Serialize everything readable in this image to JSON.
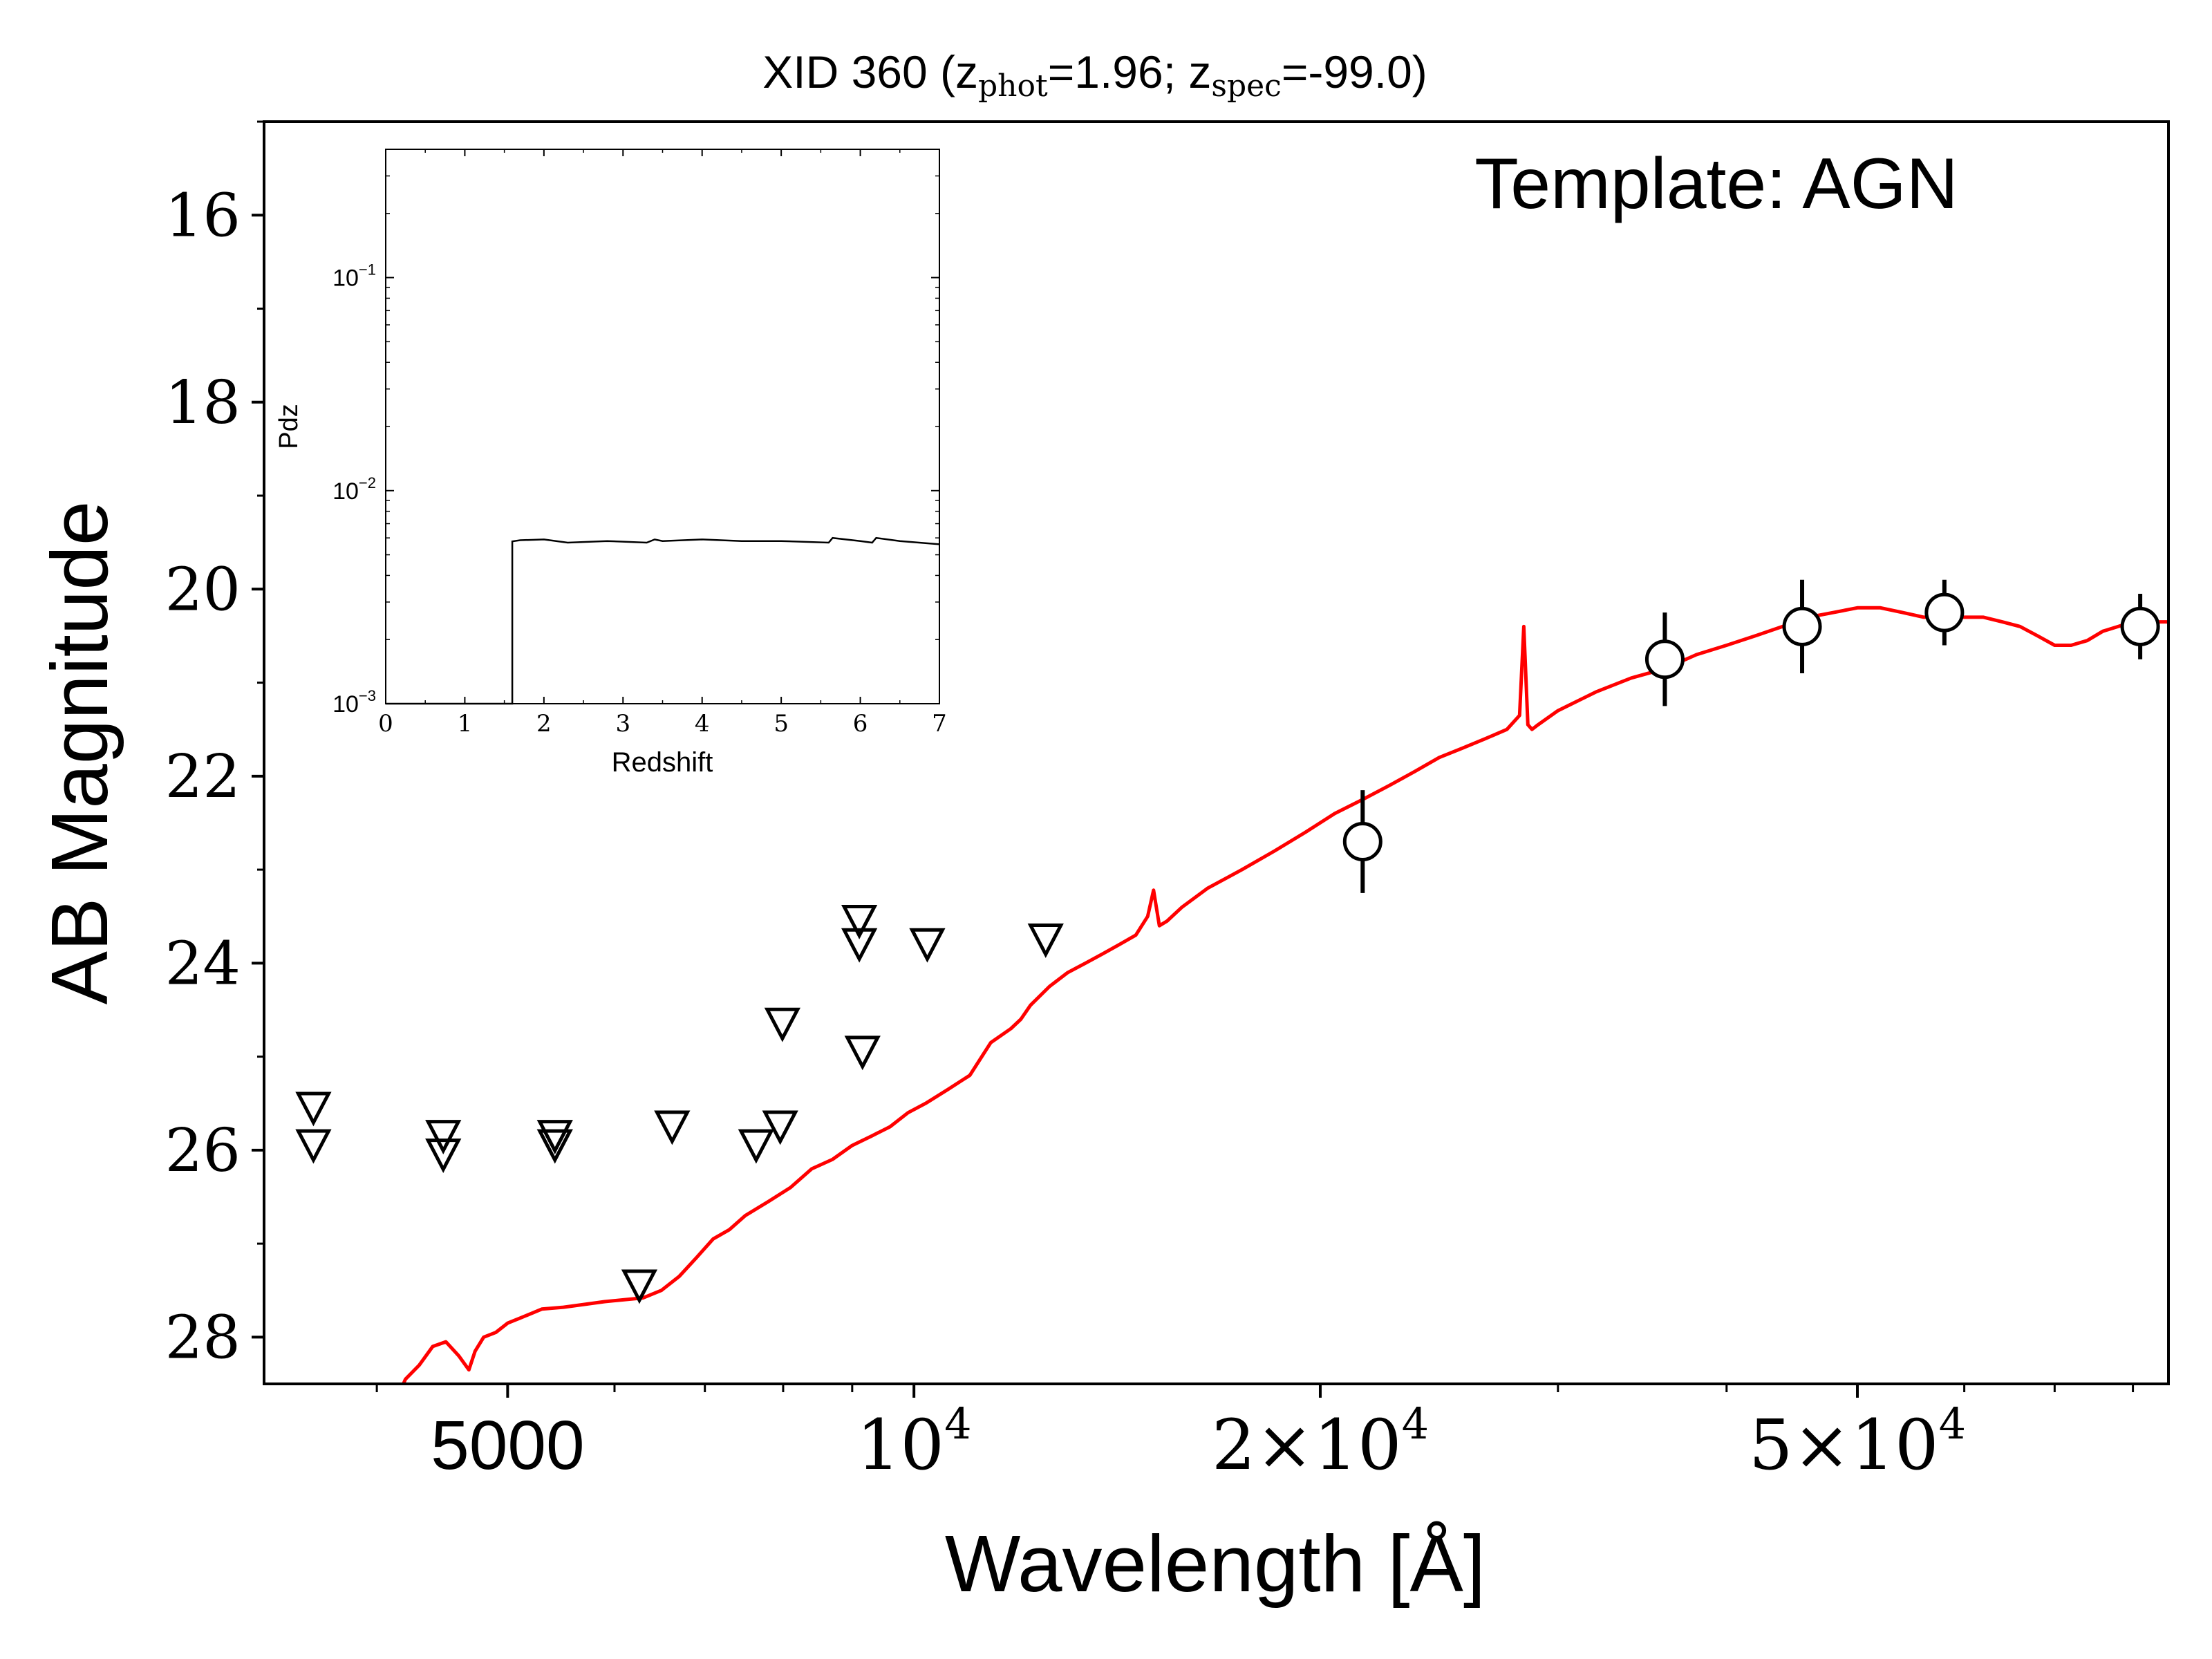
{
  "chart_data": [
    {
      "type": "scatter",
      "title": "XID 360 (z",
      "title_parts": {
        "prefix": "XID 360 (z",
        "sub1": "phot",
        "mid": "=1.96; z",
        "sub2": "spec",
        "suffix": "=-99.0)"
      },
      "annotation": "Template: AGN",
      "xlabel": "Wavelength [Å]",
      "ylabel": "AB Magnitude",
      "xscale": "log",
      "xlim": [
        3300,
        85000
      ],
      "ylim": [
        28.5,
        15
      ],
      "y_inverted": true,
      "x_tick_labels": [
        {
          "x": 5000,
          "base": "5000",
          "exp": ""
        },
        {
          "x": 10000,
          "base": "10",
          "exp": "4"
        },
        {
          "x": 20000,
          "base": "2×10",
          "exp": "4"
        },
        {
          "x": 50000,
          "base": "5×10",
          "exp": "4"
        }
      ],
      "y_ticks": [
        16,
        18,
        20,
        22,
        24,
        26,
        28
      ],
      "detections": {
        "marker": "open-circle",
        "points": [
          {
            "x": 21500,
            "y": 22.7,
            "err": 0.55
          },
          {
            "x": 36000,
            "y": 20.75,
            "err": 0.5
          },
          {
            "x": 45500,
            "y": 20.4,
            "err": 0.5
          },
          {
            "x": 58000,
            "y": 20.25,
            "err": 0.35
          },
          {
            "x": 81000,
            "y": 20.4,
            "err": 0.35
          }
        ]
      },
      "upper_limits": {
        "marker": "open-down-triangle",
        "points": [
          {
            "x": 3590,
            "y": 25.55
          },
          {
            "x": 3590,
            "y": 25.95
          },
          {
            "x": 4480,
            "y": 25.85
          },
          {
            "x": 4480,
            "y": 26.05
          },
          {
            "x": 5420,
            "y": 25.85
          },
          {
            "x": 5420,
            "y": 25.95
          },
          {
            "x": 6260,
            "y": 27.45
          },
          {
            "x": 6620,
            "y": 25.75
          },
          {
            "x": 7640,
            "y": 25.95
          },
          {
            "x": 7960,
            "y": 25.75
          },
          {
            "x": 7990,
            "y": 24.65
          },
          {
            "x": 9110,
            "y": 23.55
          },
          {
            "x": 9110,
            "y": 23.8
          },
          {
            "x": 9160,
            "y": 24.95
          },
          {
            "x": 10230,
            "y": 23.8
          },
          {
            "x": 12520,
            "y": 23.75
          }
        ]
      },
      "template_sed": {
        "name": "Template: AGN",
        "color": "#ff0000",
        "x": [
          4100,
          4200,
          4300,
          4400,
          4500,
          4600,
          4680,
          4730,
          4800,
          4900,
          5000,
          5100,
          5200,
          5300,
          5500,
          5700,
          5900,
          6100,
          6300,
          6500,
          6700,
          6900,
          7100,
          7300,
          7500,
          7800,
          8100,
          8400,
          8700,
          9000,
          9300,
          9600,
          9900,
          10200,
          10600,
          11000,
          11400,
          11800,
          12000,
          12200,
          12600,
          13000,
          13400,
          13800,
          14200,
          14600,
          14900,
          15050,
          15200,
          15400,
          15800,
          16500,
          17500,
          18500,
          19500,
          20500,
          21500,
          22500,
          23500,
          24500,
          25500,
          26500,
          27500,
          28100,
          28300,
          28500,
          28700,
          29000,
          30000,
          32000,
          34000,
          36000,
          38000,
          40000,
          42000,
          44000,
          46000,
          48000,
          50000,
          52000,
          54000,
          56000,
          58000,
          60000,
          62000,
          64000,
          66000,
          68000,
          70000,
          72000,
          74000,
          76000,
          78000,
          80000,
          82000,
          85000
        ],
        "y": [
          28.8,
          28.45,
          28.3,
          28.1,
          28.05,
          28.2,
          28.35,
          28.15,
          28.0,
          27.95,
          27.85,
          27.8,
          27.75,
          27.7,
          27.68,
          27.65,
          27.62,
          27.6,
          27.58,
          27.5,
          27.35,
          27.15,
          26.95,
          26.85,
          26.7,
          26.55,
          26.4,
          26.2,
          26.1,
          25.95,
          25.85,
          25.75,
          25.6,
          25.5,
          25.35,
          25.2,
          24.85,
          24.7,
          24.6,
          24.45,
          24.25,
          24.1,
          24.0,
          23.9,
          23.8,
          23.7,
          23.5,
          23.22,
          23.6,
          23.55,
          23.4,
          23.2,
          23.0,
          22.8,
          22.6,
          22.4,
          22.25,
          22.1,
          21.95,
          21.8,
          21.7,
          21.6,
          21.5,
          21.35,
          20.4,
          21.45,
          21.5,
          21.45,
          21.3,
          21.1,
          20.95,
          20.85,
          20.7,
          20.6,
          20.5,
          20.4,
          20.3,
          20.25,
          20.2,
          20.2,
          20.25,
          20.3,
          20.3,
          20.3,
          20.3,
          20.35,
          20.4,
          20.5,
          20.6,
          20.6,
          20.55,
          20.45,
          20.4,
          20.35,
          20.35,
          20.35
        ]
      }
    },
    {
      "type": "line",
      "title": "",
      "xlabel": "Redshift",
      "ylabel": "Pdz",
      "yscale": "log",
      "xlim": [
        0,
        7
      ],
      "ylim": [
        0.001,
        0.4
      ],
      "x_ticks": [
        0,
        1,
        2,
        3,
        4,
        5,
        6,
        7
      ],
      "y_tick_labels": [
        {
          "y": 0.1,
          "base": "10",
          "exp": "−1"
        },
        {
          "y": 0.01,
          "base": "10",
          "exp": "−2"
        },
        {
          "y": 0.001,
          "base": "10",
          "exp": "−3"
        }
      ],
      "series": [
        {
          "x": [
            0,
            1.6,
            1.6,
            1.7,
            2.0,
            2.3,
            2.8,
            3.3,
            3.4,
            3.5,
            4.0,
            4.5,
            5.0,
            5.6,
            5.65,
            6.0,
            6.15,
            6.2,
            6.5,
            7.0
          ],
          "y": [
            0.001,
            0.001,
            0.00578,
            0.00585,
            0.0059,
            0.0057,
            0.0058,
            0.0057,
            0.0059,
            0.0058,
            0.0059,
            0.0058,
            0.0058,
            0.0057,
            0.006,
            0.0058,
            0.0057,
            0.006,
            0.0058,
            0.0056
          ]
        }
      ]
    }
  ]
}
